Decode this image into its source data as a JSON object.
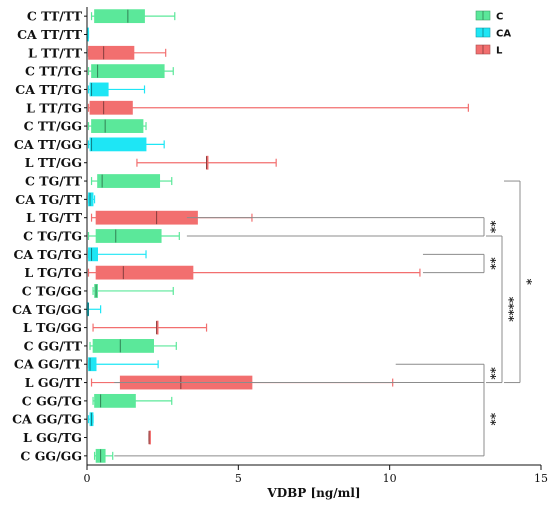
{
  "chart_data": {
    "type": "boxplot",
    "orientation": "horizontal",
    "xlabel": "VDBP [ng/ml]",
    "xlim": [
      0,
      15
    ],
    "xticks": [
      0,
      5,
      10,
      15
    ],
    "grid": false,
    "legend_position": "top-right",
    "series": [
      {
        "name": "C",
        "color": "#5be89a"
      },
      {
        "name": "CA",
        "color": "#1ee6f5"
      },
      {
        "name": "L",
        "color": "#f26f6f"
      }
    ],
    "categories": [
      {
        "label": "C TT/TT",
        "group": "C",
        "min": 0.15,
        "q1": 0.25,
        "median": 1.35,
        "q3": 1.9,
        "max": 2.9
      },
      {
        "label": "CA TT/TT",
        "group": "CA",
        "min": 0.0,
        "q1": 0.0,
        "median": 0.0,
        "q3": 0.05,
        "max": 0.05
      },
      {
        "label": "L TT/TT",
        "group": "L",
        "min": 0.05,
        "q1": 0.05,
        "median": 0.55,
        "q3": 1.55,
        "max": 2.6
      },
      {
        "label": "C TT/TG",
        "group": "C",
        "min": 0.05,
        "q1": 0.15,
        "median": 0.35,
        "q3": 2.55,
        "max": 2.85
      },
      {
        "label": "CA TT/TG",
        "group": "CA",
        "min": 0.05,
        "q1": 0.1,
        "median": 0.15,
        "q3": 0.7,
        "max": 1.9
      },
      {
        "label": "L TT/TG",
        "group": "L",
        "min": 0.05,
        "q1": 0.1,
        "median": 0.55,
        "q3": 1.5,
        "max": 12.6
      },
      {
        "label": "C TT/GG",
        "group": "C",
        "min": 0.05,
        "q1": 0.15,
        "median": 0.6,
        "q3": 1.85,
        "max": 1.95
      },
      {
        "label": "CA TT/GG",
        "group": "CA",
        "min": 0.05,
        "q1": 0.1,
        "median": 0.15,
        "q3": 1.95,
        "max": 2.55
      },
      {
        "label": "L TT/GG",
        "group": "L",
        "min": 1.65,
        "q1": 3.95,
        "median": 3.95,
        "q3": 3.95,
        "max": 6.25
      },
      {
        "label": "C TG/TT",
        "group": "C",
        "min": 0.15,
        "q1": 0.35,
        "median": 0.5,
        "q3": 2.4,
        "max": 2.8
      },
      {
        "label": "CA TG/TT",
        "group": "CA",
        "min": 0.05,
        "q1": 0.05,
        "median": 0.1,
        "q3": 0.2,
        "max": 0.25
      },
      {
        "label": "L TG/TT",
        "group": "L",
        "min": 0.15,
        "q1": 0.3,
        "median": 2.3,
        "q3": 3.65,
        "max": 5.45
      },
      {
        "label": "C TG/TG",
        "group": "C",
        "min": 0.05,
        "q1": 0.3,
        "median": 0.95,
        "q3": 2.45,
        "max": 3.05
      },
      {
        "label": "CA TG/TG",
        "group": "CA",
        "min": 0.05,
        "q1": 0.05,
        "median": 0.15,
        "q3": 0.35,
        "max": 1.95
      },
      {
        "label": "L TG/TG",
        "group": "L",
        "min": 0.05,
        "q1": 0.3,
        "median": 1.2,
        "q3": 3.5,
        "max": 11.0
      },
      {
        "label": "C TG/GG",
        "group": "C",
        "min": 0.2,
        "q1": 0.25,
        "median": 0.3,
        "q3": 0.35,
        "max": 2.85
      },
      {
        "label": "CA TG/GG",
        "group": "CA",
        "min": 0.0,
        "q1": 0.0,
        "median": 0.05,
        "q3": 0.05,
        "max": 0.45
      },
      {
        "label": "L TG/GG",
        "group": "L",
        "min": 0.2,
        "q1": 2.3,
        "median": 2.3,
        "q3": 2.3,
        "max": 3.95
      },
      {
        "label": "C GG/TT",
        "group": "C",
        "min": 0.1,
        "q1": 0.2,
        "median": 1.1,
        "q3": 2.2,
        "max": 2.95
      },
      {
        "label": "CA GG/TT",
        "group": "CA",
        "min": 0.05,
        "q1": 0.05,
        "median": 0.1,
        "q3": 0.3,
        "max": 2.35
      },
      {
        "label": "L GG/TT",
        "group": "L",
        "min": 0.15,
        "q1": 1.1,
        "median": 3.1,
        "q3": 5.45,
        "max": 10.1
      },
      {
        "label": "C GG/TG",
        "group": "C",
        "min": 0.2,
        "q1": 0.25,
        "median": 0.45,
        "q3": 1.6,
        "max": 2.8
      },
      {
        "label": "CA GG/TG",
        "group": "CA",
        "min": 0.05,
        "q1": 0.1,
        "median": 0.15,
        "q3": 0.2,
        "max": 0.2
      },
      {
        "label": "L GG/TG",
        "group": "L",
        "min": 2.05,
        "q1": 2.05,
        "median": 2.05,
        "q3": 2.05,
        "max": 2.05
      },
      {
        "label": "C GG/GG",
        "group": "C",
        "min": 0.25,
        "q1": 0.3,
        "median": 0.45,
        "q3": 0.6,
        "max": 0.85
      }
    ],
    "significance": [
      {
        "from": 11,
        "to": 12,
        "x": 3.3,
        "label": "**",
        "level": 0
      },
      {
        "from": 13,
        "to": 14,
        "x": 11.1,
        "label": "**",
        "level": 0
      },
      {
        "from": 19,
        "to": 20,
        "x": 10.2,
        "label": "**",
        "level": 0
      },
      {
        "from": 20,
        "to": 24,
        "x": 0.9,
        "label": "**",
        "level": 0
      },
      {
        "from": 12,
        "to": 20,
        "x": null,
        "label": "****",
        "level": 1
      },
      {
        "from": 9,
        "to": 20,
        "x": null,
        "label": "*",
        "level": 2
      }
    ]
  }
}
